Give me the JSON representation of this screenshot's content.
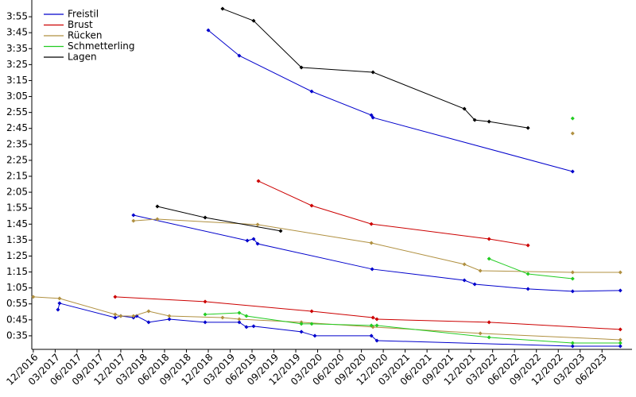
{
  "chart_data": {
    "type": "line",
    "legend": "upper left",
    "grid": false,
    "xlim": [
      2016.9,
      2023.76
    ],
    "ylim": [
      26.5,
      245.5
    ],
    "xticks": [
      {
        "value": 2016.917,
        "label": "12/2016"
      },
      {
        "value": 2017.167,
        "label": "03/2017"
      },
      {
        "value": 2017.417,
        "label": "06/2017"
      },
      {
        "value": 2017.667,
        "label": "09/2017"
      },
      {
        "value": 2017.917,
        "label": "12/2017"
      },
      {
        "value": 2018.167,
        "label": "03/2018"
      },
      {
        "value": 2018.417,
        "label": "06/2018"
      },
      {
        "value": 2018.667,
        "label": "09/2018"
      },
      {
        "value": 2018.917,
        "label": "12/2018"
      },
      {
        "value": 2019.167,
        "label": "03/2019"
      },
      {
        "value": 2019.417,
        "label": "06/2019"
      },
      {
        "value": 2019.667,
        "label": "09/2019"
      },
      {
        "value": 2019.917,
        "label": "12/2019"
      },
      {
        "value": 2020.167,
        "label": "03/2020"
      },
      {
        "value": 2020.417,
        "label": "06/2020"
      },
      {
        "value": 2020.667,
        "label": "09/2020"
      },
      {
        "value": 2020.917,
        "label": "12/2020"
      },
      {
        "value": 2021.167,
        "label": "03/2021"
      },
      {
        "value": 2021.417,
        "label": "06/2021"
      },
      {
        "value": 2021.667,
        "label": "09/2021"
      },
      {
        "value": 2021.917,
        "label": "12/2021"
      },
      {
        "value": 2022.167,
        "label": "03/2022"
      },
      {
        "value": 2022.417,
        "label": "06/2022"
      },
      {
        "value": 2022.667,
        "label": "09/2022"
      },
      {
        "value": 2022.917,
        "label": "12/2022"
      },
      {
        "value": 2023.167,
        "label": "03/2023"
      },
      {
        "value": 2023.417,
        "label": "06/2023"
      }
    ],
    "yticks": [
      {
        "value": 35,
        "label": "0:35"
      },
      {
        "value": 45,
        "label": "0:45"
      },
      {
        "value": 55,
        "label": "0:55"
      },
      {
        "value": 65,
        "label": "1:05"
      },
      {
        "value": 75,
        "label": "1:15"
      },
      {
        "value": 85,
        "label": "1:25"
      },
      {
        "value": 95,
        "label": "1:35"
      },
      {
        "value": 105,
        "label": "1:45"
      },
      {
        "value": 115,
        "label": "1:55"
      },
      {
        "value": 125,
        "label": "2:05"
      },
      {
        "value": 135,
        "label": "2:15"
      },
      {
        "value": 145,
        "label": "2:25"
      },
      {
        "value": 155,
        "label": "2:35"
      },
      {
        "value": 165,
        "label": "2:45"
      },
      {
        "value": 175,
        "label": "2:55"
      },
      {
        "value": 185,
        "label": "3:05"
      },
      {
        "value": 195,
        "label": "3:15"
      },
      {
        "value": 205,
        "label": "3:25"
      },
      {
        "value": 215,
        "label": "3:35"
      },
      {
        "value": 225,
        "label": "3:45"
      },
      {
        "value": 235,
        "label": "3:55"
      }
    ],
    "series": [
      {
        "name": "Freistil",
        "color": "#0000cc",
        "x": [
          2018.917,
          2019.271,
          2020.099,
          2020.781,
          2020.799,
          2023.081,
          null,
          2018.062,
          2019.363,
          2019.435,
          2019.481,
          2020.79,
          2021.844,
          2021.962,
          2022.571,
          2023.081,
          2023.626,
          null,
          2017.199,
          2017.217,
          2017.853,
          2017.917,
          2018.062,
          2018.099,
          2018.235,
          2018.472,
          2018.881,
          2019.271,
          2019.353,
          2019.435,
          2019.981,
          2020.135,
          2020.781,
          2020.844,
          2023.081,
          2023.626
        ],
        "values": [
          226.5,
          210.6,
          188.2,
          173.3,
          171.8,
          138.0,
          null,
          110.6,
          94.7,
          95.7,
          92.7,
          76.8,
          69.8,
          67.3,
          64.4,
          62.9,
          63.4,
          null,
          51.4,
          55.4,
          46.4,
          47.4,
          46.4,
          47.4,
          43.5,
          45.4,
          43.5,
          43.5,
          40.5,
          41.0,
          37.5,
          35.0,
          35.0,
          32.0,
          28.5,
          28.5
        ]
      },
      {
        "name": "Brust",
        "color": "#cc0000",
        "x": [
          2019.49,
          2020.099,
          2020.781,
          2022.126,
          2022.571,
          null,
          2017.853,
          2018.881,
          2020.099,
          2020.799,
          2020.844,
          2022.126,
          2023.626
        ],
        "values": [
          132.0,
          116.6,
          105.1,
          95.7,
          91.7,
          null,
          59.4,
          56.4,
          50.4,
          46.4,
          45.4,
          43.5,
          39.0
        ]
      },
      {
        "name": "Rücken",
        "color": "#b09040",
        "x": [
          2016.917,
          2017.217,
          2017.853,
          2017.917,
          2018.062,
          2018.235,
          2018.472,
          2019.08,
          2019.271,
          2019.981,
          2020.799,
          2022.026,
          2023.626,
          null,
          2018.062,
          2018.335,
          2019.481,
          2020.781,
          2021.844,
          2022.026,
          2023.081,
          2023.626,
          null,
          2023.081
        ],
        "values": [
          59.4,
          58.4,
          48.4,
          47.4,
          47.4,
          50.4,
          47.4,
          46.4,
          45.4,
          43.5,
          40.5,
          36.5,
          32.5,
          null,
          107.1,
          108.1,
          104.7,
          93.2,
          79.8,
          75.8,
          74.8,
          74.8,
          null,
          161.9
        ]
      },
      {
        "name": "Schmetterling",
        "color": "#22cc22",
        "x": [
          2018.881,
          2019.271,
          2019.353,
          2019.981,
          2020.099,
          2020.781,
          2020.844,
          2022.126,
          2023.081,
          2023.626,
          null,
          2022.126,
          2022.571,
          2023.081,
          null,
          2023.081
        ],
        "values": [
          48.4,
          49.4,
          47.4,
          42.5,
          42.5,
          41.5,
          41.5,
          34.0,
          30.5,
          30.5,
          null,
          83.3,
          73.8,
          70.8,
          null,
          171.3
        ]
      },
      {
        "name": "Lagen",
        "color": "#000000",
        "x": [
          2019.08,
          2019.435,
          2019.981,
          2020.799,
          2021.844,
          2021.962,
          2022.126,
          2022.571,
          null,
          2018.335,
          2018.881,
          2019.744
        ],
        "values": [
          240.0,
          232.5,
          203.2,
          200.2,
          177.3,
          170.3,
          169.3,
          165.3,
          null,
          116.1,
          109.1,
          100.7
        ]
      }
    ]
  }
}
